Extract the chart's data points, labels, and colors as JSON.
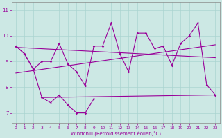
{
  "bg_color": "#cce8e4",
  "grid_color": "#aad4d0",
  "line_color": "#990099",
  "xlabel": "Windchill (Refroidissement éolien,°C)",
  "ylim": [
    6.6,
    11.3
  ],
  "xlim": [
    -0.5,
    23.5
  ],
  "yticks": [
    7,
    8,
    9,
    10,
    11
  ],
  "s1x": [
    0,
    1,
    2,
    3,
    4,
    5,
    6,
    7,
    8,
    9,
    10,
    11,
    12,
    13,
    14,
    15,
    16,
    17,
    18,
    19,
    20,
    21,
    22,
    23
  ],
  "s1y": [
    9.6,
    9.3,
    8.7,
    9.0,
    9.0,
    9.7,
    8.9,
    8.6,
    8.05,
    9.6,
    9.6,
    10.5,
    9.3,
    8.6,
    10.1,
    10.1,
    9.5,
    9.6,
    8.85,
    9.7,
    10.0,
    10.5,
    8.1,
    7.7
  ],
  "s2x": [
    0,
    1,
    2,
    3,
    4,
    5,
    6,
    7,
    8,
    9
  ],
  "s2y": [
    9.6,
    9.3,
    8.7,
    7.6,
    7.4,
    7.7,
    7.3,
    7.0,
    7.0,
    7.55
  ],
  "trend1x": [
    0,
    23
  ],
  "trend1y": [
    9.55,
    9.15
  ],
  "trend2x": [
    0,
    23
  ],
  "trend2y": [
    8.55,
    9.65
  ],
  "flatx": [
    3,
    23
  ],
  "flaty": [
    7.6,
    7.7
  ]
}
